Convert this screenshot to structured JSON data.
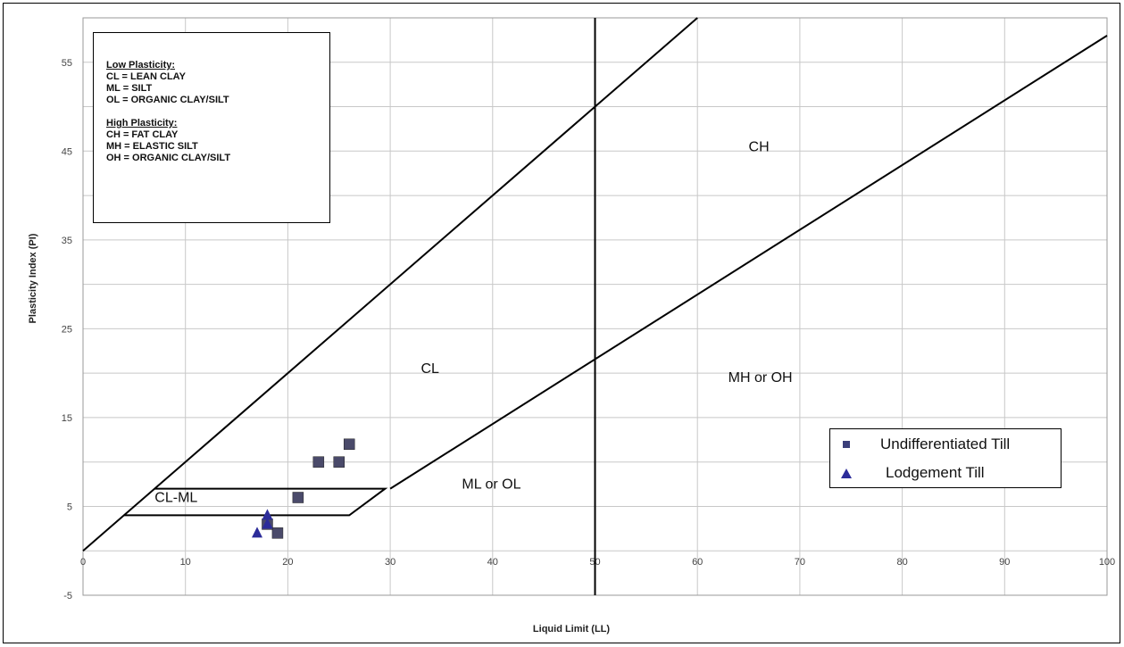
{
  "colors": {
    "square": "#4a4a6a",
    "triangle": "#2c2c9a",
    "line": "#000000",
    "grid": "#c8c8c8"
  },
  "chart_data": {
    "type": "scatter",
    "title": "",
    "xlabel": "Liquid Limit (LL)",
    "ylabel": "Plasticity Index (PI)",
    "xlim": [
      0,
      100
    ],
    "ylim": [
      -5,
      60
    ],
    "x_ticks": [
      "0",
      "10",
      "20",
      "30",
      "40",
      "50",
      "60",
      "70",
      "80",
      "90",
      "100"
    ],
    "y_ticks": [
      "-5",
      "5",
      "15",
      "25",
      "35",
      "45",
      "55"
    ],
    "x_tick_values": [
      0,
      10,
      20,
      30,
      40,
      50,
      60,
      70,
      80,
      90,
      100
    ],
    "y_tick_values": [
      -5,
      5,
      15,
      25,
      35,
      45,
      55
    ],
    "y_grid": [
      -5,
      0,
      5,
      10,
      15,
      20,
      25,
      30,
      35,
      40,
      45,
      50,
      55
    ],
    "grid": true,
    "legend_position": "lower-right",
    "series": [
      {
        "name": "Undifferentiated Till",
        "marker": "square",
        "points": [
          [
            23,
            10
          ],
          [
            25,
            10
          ],
          [
            26,
            12
          ],
          [
            21,
            6
          ],
          [
            19,
            2
          ],
          [
            18,
            3
          ]
        ]
      },
      {
        "name": "Lodgement Till",
        "marker": "triangle",
        "points": [
          [
            17,
            2
          ],
          [
            18,
            4
          ],
          [
            18,
            3
          ]
        ]
      }
    ],
    "lines": [
      {
        "name": "u-line",
        "points": [
          [
            0,
            0
          ],
          [
            60,
            60
          ]
        ]
      },
      {
        "name": "a-line",
        "points": [
          [
            30,
            7
          ],
          [
            100,
            58
          ]
        ]
      },
      {
        "name": "ll-50",
        "points": [
          [
            50,
            -5
          ],
          [
            50,
            60
          ]
        ]
      },
      {
        "name": "cl-ml-zone",
        "points": [
          [
            7,
            7
          ],
          [
            29.5,
            7
          ],
          [
            26,
            4
          ],
          [
            4,
            4
          ]
        ]
      }
    ],
    "zone_labels": [
      {
        "text": "CH",
        "x": 65,
        "y": 45
      },
      {
        "text": "CL",
        "x": 33,
        "y": 20
      },
      {
        "text": "MH or OH",
        "x": 63,
        "y": 19
      },
      {
        "text": "ML or OL",
        "x": 37,
        "y": 7
      },
      {
        "text": "CL-ML",
        "x": 7,
        "y": 5.5
      }
    ]
  },
  "key": {
    "low_heading": "Low Plasticity:",
    "low_items": [
      "CL = LEAN CLAY",
      "ML = SILT",
      "OL = ORGANIC CLAY/SILT"
    ],
    "high_heading": "High Plasticity:",
    "high_items": [
      "CH = FAT CLAY",
      "MH = ELASTIC SILT",
      "OH = ORGANIC CLAY/SILT"
    ]
  }
}
